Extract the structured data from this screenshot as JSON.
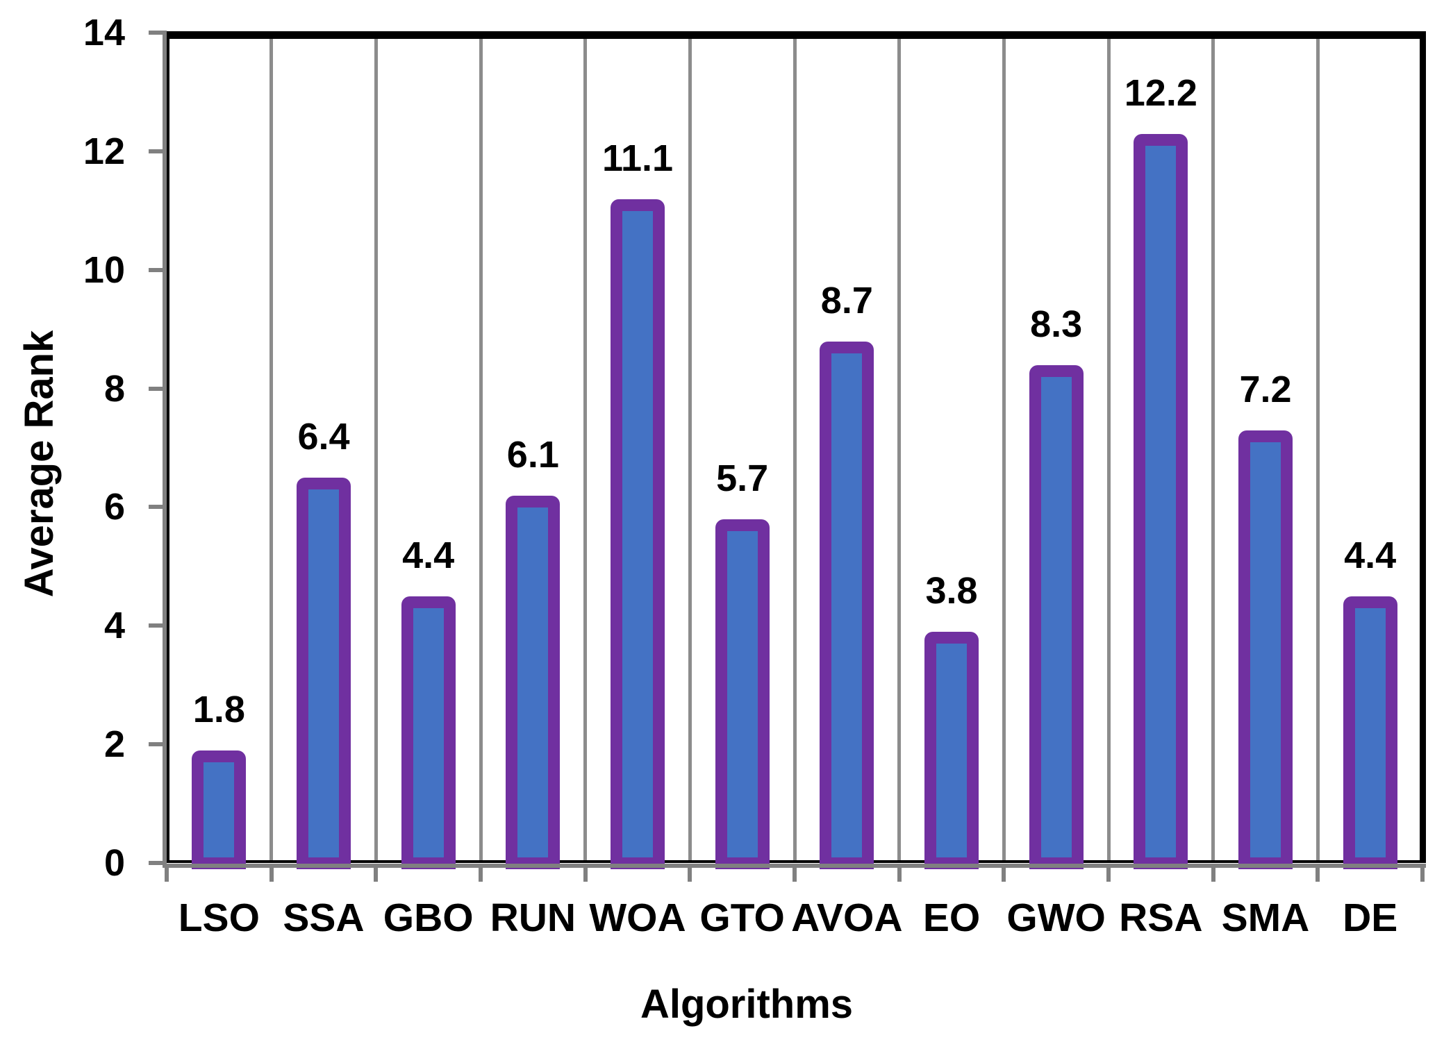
{
  "chart_data": {
    "type": "bar",
    "title": "",
    "xlabel": "Algorithms",
    "ylabel": "Average Rank",
    "categories": [
      "LSO",
      "SSA",
      "GBO",
      "RUN",
      "WOA",
      "GTO",
      "AVOA",
      "EO",
      "GWO",
      "RSA",
      "SMA",
      "DE"
    ],
    "values": [
      1.8,
      6.4,
      4.4,
      6.1,
      11.1,
      5.7,
      8.7,
      3.8,
      8.3,
      12.2,
      7.2,
      4.4
    ],
    "value_labels": [
      "1.8",
      "6.4",
      "4.4",
      "6.1",
      "11.1",
      "5.7",
      "8.7",
      "3.8",
      "8.3",
      "12.2",
      "7.2",
      "4.4"
    ],
    "ylim": [
      0,
      14
    ],
    "yticks": [
      0,
      2,
      4,
      6,
      8,
      10,
      12,
      14
    ],
    "ytick_labels": [
      "0",
      "2",
      "4",
      "6",
      "8",
      "10",
      "12",
      "14"
    ],
    "grid": "vertical-only",
    "legend": "none",
    "colors": {
      "bar_fill": "#4472C4",
      "bar_border": "#7030A0",
      "gridline": "#8C8C8C",
      "axis_line": "#808080",
      "plot_border": "#000000",
      "text": "#000000",
      "background": "#FFFFFF"
    }
  }
}
